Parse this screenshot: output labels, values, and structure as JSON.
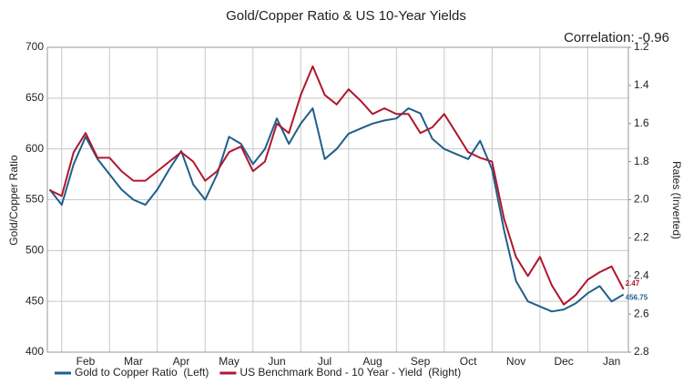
{
  "chart_data": {
    "type": "line",
    "title": "Gold/Copper Ratio & US 10-Year Yields",
    "annotation": "Correlation: -0.96",
    "y_label": "Gold/Copper Ratio",
    "y2_label": "Rates (Inverted)",
    "x": [
      -0.25,
      0,
      0.25,
      0.5,
      0.75,
      1,
      1.25,
      1.5,
      1.75,
      2,
      2.25,
      2.5,
      2.75,
      3,
      3.25,
      3.5,
      3.75,
      4,
      4.25,
      4.5,
      4.75,
      5,
      5.25,
      5.5,
      5.75,
      6,
      6.25,
      6.5,
      6.75,
      7,
      7.25,
      7.5,
      7.75,
      8,
      8.25,
      8.5,
      8.75,
      9,
      9.25,
      9.5,
      9.75,
      10,
      10.25,
      10.5,
      10.75,
      11,
      11.25,
      11.5,
      11.75
    ],
    "xlim": [
      -0.3,
      11.85
    ],
    "xticks": [
      {
        "value": 0,
        "label": "Feb"
      },
      {
        "value": 1,
        "label": "Mar"
      },
      {
        "value": 2,
        "label": "Apr"
      },
      {
        "value": 3,
        "label": "May"
      },
      {
        "value": 4,
        "label": "Jun"
      },
      {
        "value": 5,
        "label": "Jul"
      },
      {
        "value": 6,
        "label": "Aug"
      },
      {
        "value": 7,
        "label": "Sep"
      },
      {
        "value": 8,
        "label": "Oct"
      },
      {
        "value": 9,
        "label": "Nov"
      },
      {
        "value": 10,
        "label": "Dec"
      },
      {
        "value": 11,
        "label": "Jan"
      }
    ],
    "ylim": [
      400,
      700
    ],
    "yticks": [
      400,
      450,
      500,
      550,
      600,
      650,
      700
    ],
    "y2lim": [
      2.8,
      1.2
    ],
    "y2ticks": [
      1.2,
      1.4,
      1.6,
      1.8,
      {
        "value": 2,
        "label": "2.0"
      },
      2.2,
      2.4,
      2.6,
      2.8
    ],
    "grid": true,
    "legend": "bottom",
    "series": [
      {
        "name": "Gold to Copper Ratio  (Left)",
        "color": "#1f5f8b",
        "values": [
          560,
          545,
          585,
          612,
          590,
          575,
          560,
          550,
          545,
          560,
          580,
          598,
          565,
          550,
          575,
          612,
          605,
          585,
          600,
          630,
          605,
          625,
          640,
          590,
          600,
          615,
          620,
          625,
          628,
          630,
          640,
          635,
          610,
          600,
          595,
          590,
          608,
          580,
          520,
          470,
          450,
          445,
          440,
          442,
          448,
          458,
          465,
          450,
          456.75
        ]
      },
      {
        "name": "US Benchmark Bond - 10 Year - Yield  (Right)",
        "color": "#b0172f",
        "axis": "y2",
        "values": [
          1.95,
          1.98,
          1.75,
          1.65,
          1.78,
          1.78,
          1.85,
          1.9,
          1.9,
          1.85,
          1.8,
          1.75,
          1.8,
          1.9,
          1.85,
          1.75,
          1.72,
          1.85,
          1.8,
          1.6,
          1.65,
          1.45,
          1.3,
          1.45,
          1.5,
          1.42,
          1.48,
          1.55,
          1.52,
          1.55,
          1.55,
          1.65,
          1.62,
          1.55,
          1.65,
          1.75,
          1.78,
          1.8,
          2.1,
          2.3,
          2.4,
          2.3,
          2.45,
          2.55,
          2.5,
          2.42,
          2.38,
          2.35,
          2.47
        ]
      }
    ]
  }
}
